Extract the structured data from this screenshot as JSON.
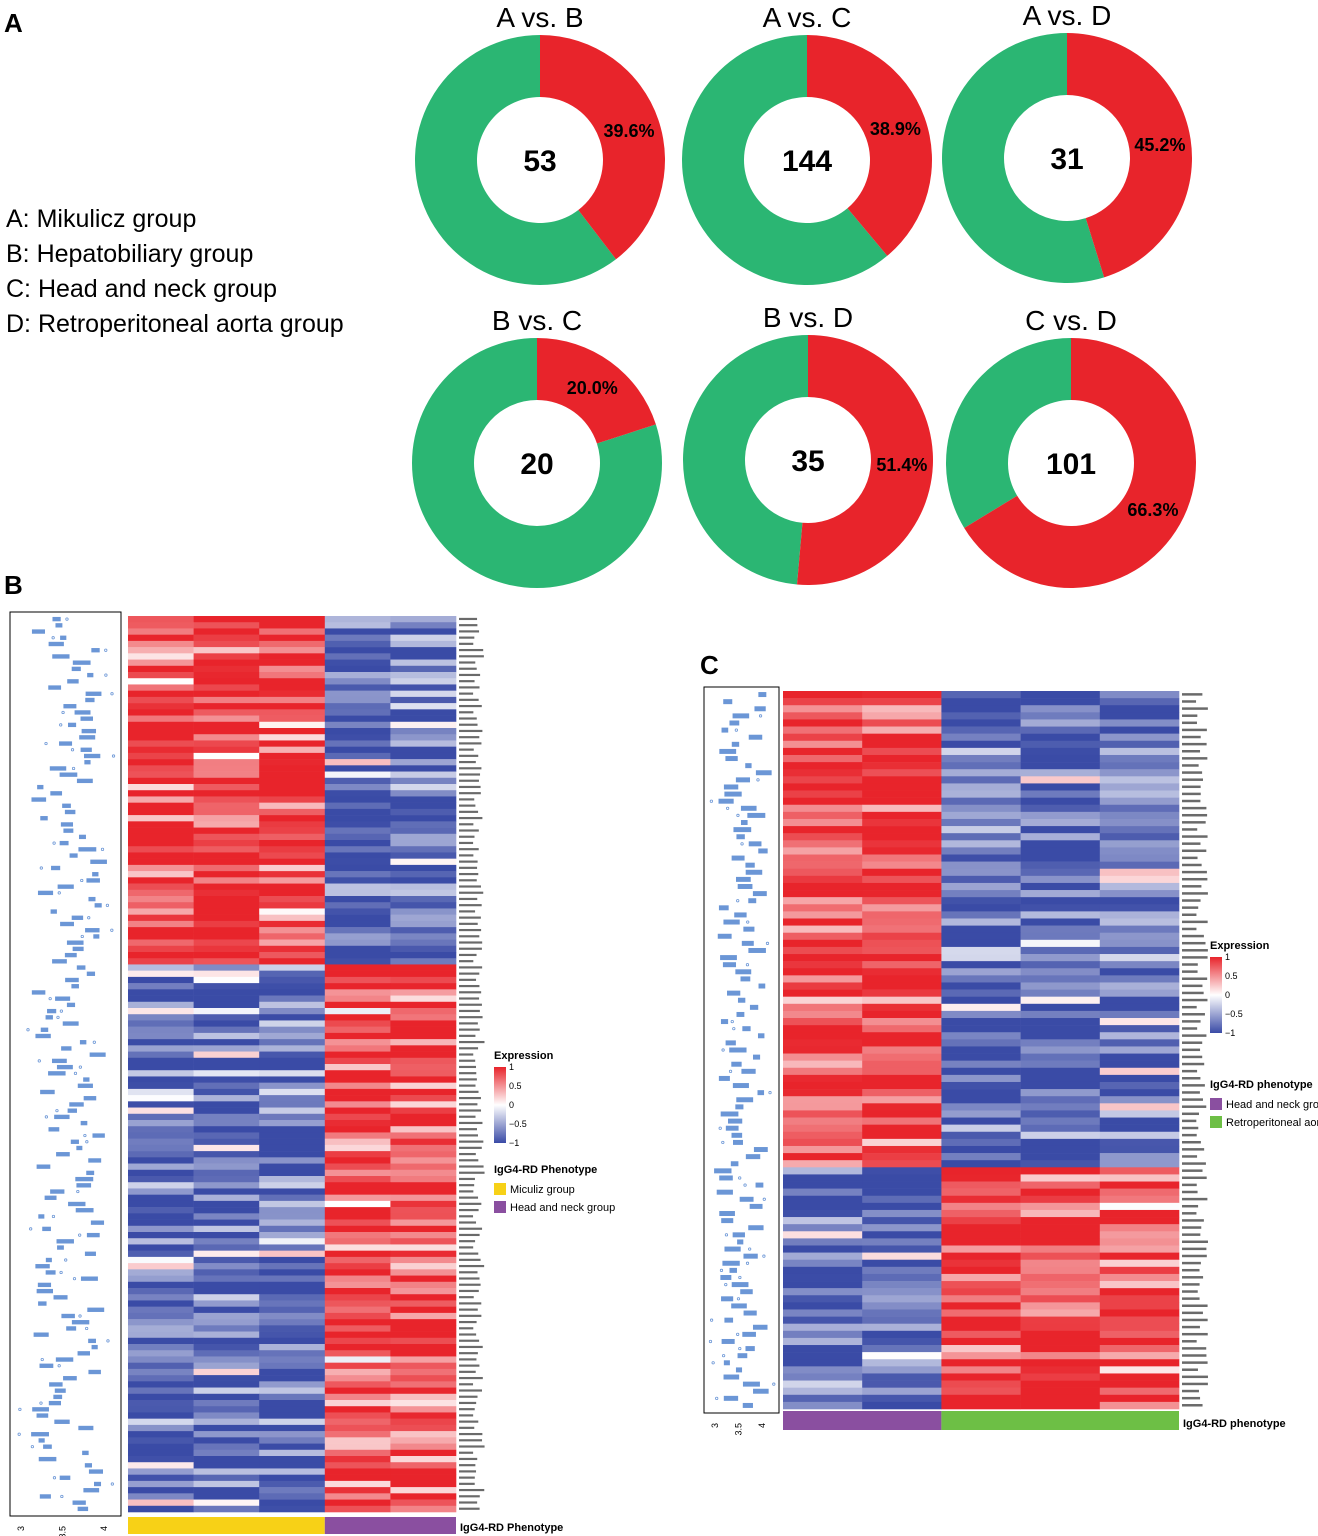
{
  "panels": {
    "a": "A",
    "b": "B",
    "c": "C"
  },
  "group_legend": [
    "A: Mikulicz group",
    "B: Hepatobiliary group",
    "C: Head and neck group",
    "D: Retroperitoneal aorta group"
  ],
  "colors": {
    "red": "#e8242b",
    "green": "#2bb673",
    "heat_high": "#e8242b",
    "heat_mid": "#ffffff",
    "heat_low": "#3a4ba6",
    "miculiz": "#f7d117",
    "headneck_purple": "#8a4fa0",
    "retro_green": "#6dbf45",
    "box_blue": "#6b96d6"
  },
  "chart_data": [
    {
      "type": "pie",
      "variant": "donut",
      "title": "A vs. B",
      "total": 53,
      "red_percent": 39.6,
      "label": "39.6%"
    },
    {
      "type": "pie",
      "variant": "donut",
      "title": "A vs. C",
      "total": 144,
      "red_percent": 38.9,
      "label": "38.9%"
    },
    {
      "type": "pie",
      "variant": "donut",
      "title": "A vs. D",
      "total": 31,
      "red_percent": 45.2,
      "label": "45.2%"
    },
    {
      "type": "pie",
      "variant": "donut",
      "title": "B vs. C",
      "total": 20,
      "red_percent": 20.0,
      "label": "20.0%"
    },
    {
      "type": "pie",
      "variant": "donut",
      "title": "B vs. D",
      "total": 35,
      "red_percent": 51.4,
      "label": "51.4%"
    },
    {
      "type": "pie",
      "variant": "donut",
      "title": "C vs. D",
      "total": 101,
      "red_percent": 66.3,
      "label": "66.3%"
    },
    {
      "type": "heatmap",
      "panel": "B",
      "n_rows": 144,
      "n_columns": 5,
      "columns_group1": 3,
      "columns_group2": 2,
      "up_rows": 56,
      "legend_title": "Expression",
      "legend_ticks": [
        "1",
        "0.5",
        "0",
        "−0.5",
        "−1"
      ],
      "phenotype_title": "IgG4-RD Phenotype",
      "phenotype_groups": [
        "Miculiz group",
        "Head and neck group"
      ],
      "phenotype_bar_label": "IgG4-RD Phenotype",
      "box_axis_ticks": [
        "3",
        "3.5",
        "4"
      ]
    },
    {
      "type": "heatmap",
      "panel": "C",
      "n_rows": 101,
      "n_columns": 5,
      "columns_group1": 2,
      "columns_group2": 3,
      "up_rows": 67,
      "legend_title": "Expression",
      "legend_ticks": [
        "1",
        "0.5",
        "0",
        "−0.5",
        "−1"
      ],
      "phenotype_title": "IgG4-RD phenotype",
      "phenotype_groups": [
        "Head and neck group",
        "Retroperitoneal aorta group"
      ],
      "phenotype_bar_label": "IgG4-RD phenotype",
      "box_axis_ticks": [
        "3",
        "3.5",
        "4"
      ]
    }
  ]
}
